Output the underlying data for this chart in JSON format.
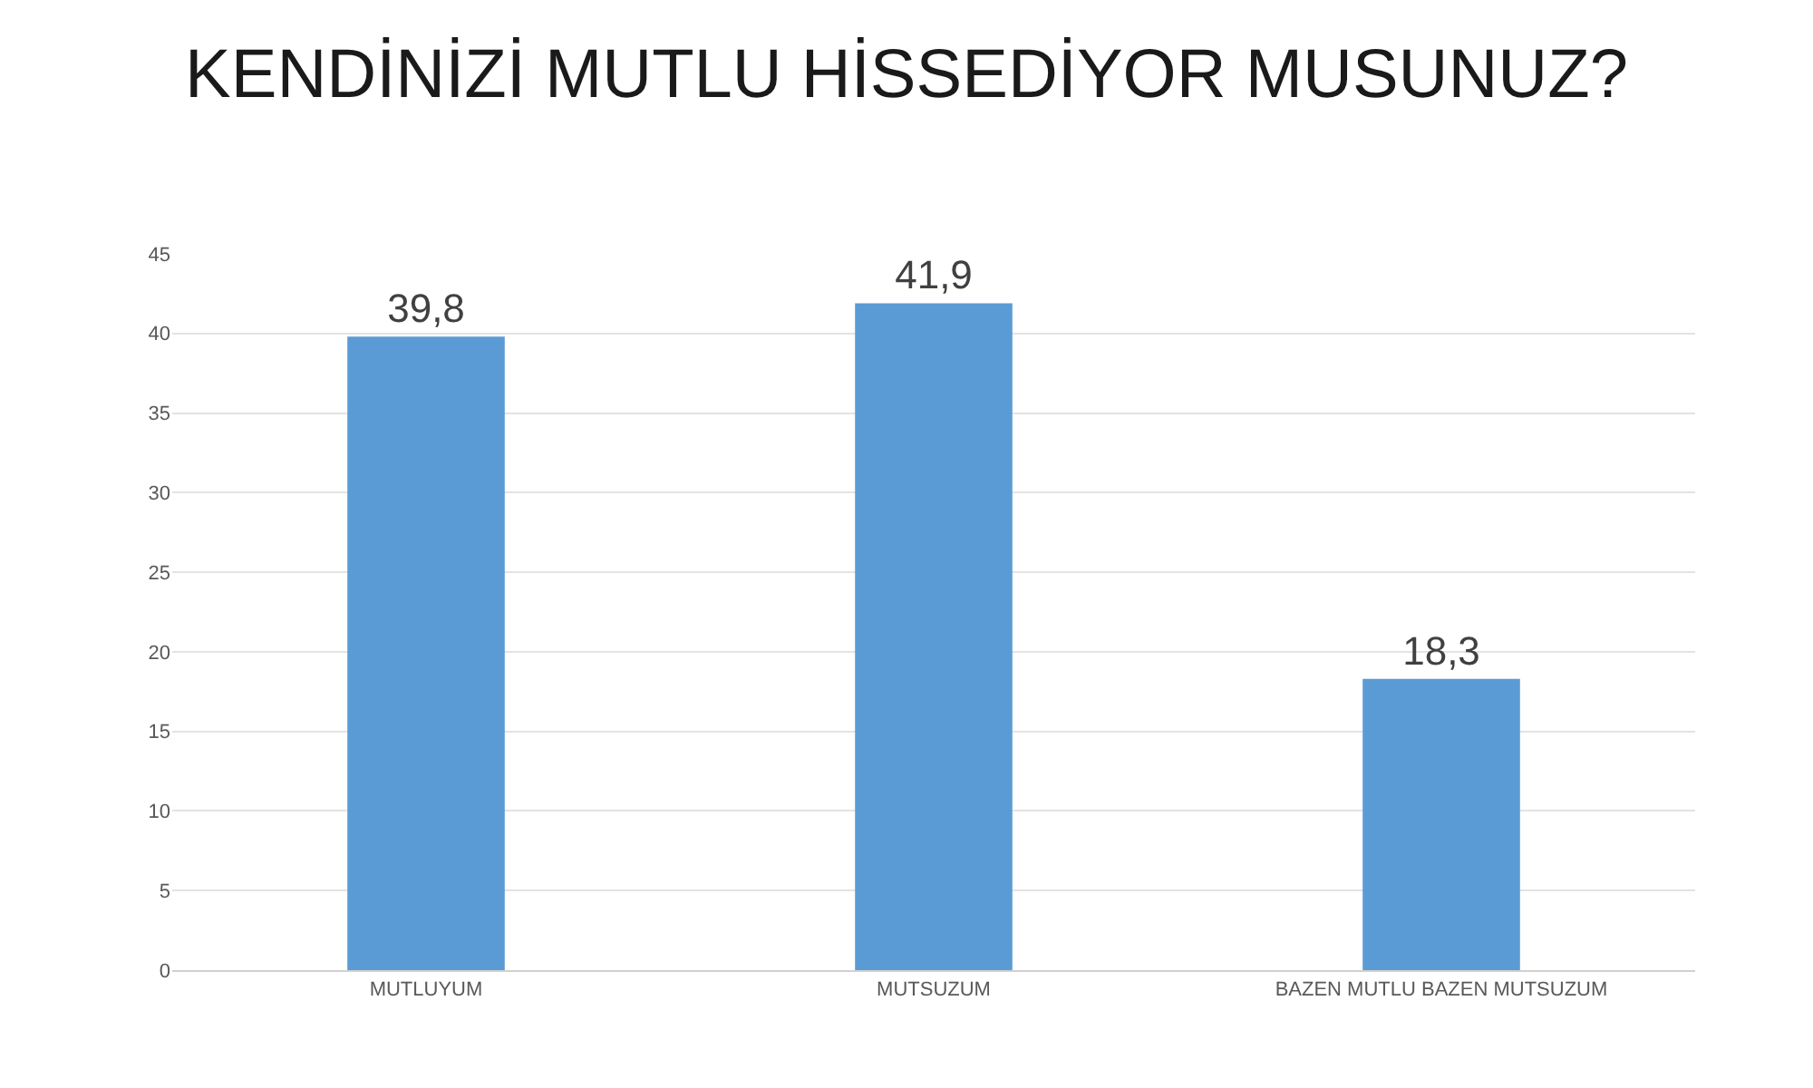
{
  "chart_data": {
    "type": "bar",
    "title": "KENDİNİZİ MUTLU HİSSEDİYOR MUSUNUZ?",
    "categories": [
      "MUTLUYUM",
      "MUTSUZUM",
      "BAZEN MUTLU BAZEN MUTSUZUM"
    ],
    "values": [
      39.8,
      41.9,
      18.3
    ],
    "value_labels": [
      "39,8",
      "41,9",
      "18,3"
    ],
    "color": "#5b9bd5",
    "ylim": [
      0,
      45
    ],
    "yticks": [
      0,
      5,
      10,
      15,
      20,
      25,
      30,
      35,
      40,
      45
    ],
    "grid": "y",
    "legend": false
  }
}
